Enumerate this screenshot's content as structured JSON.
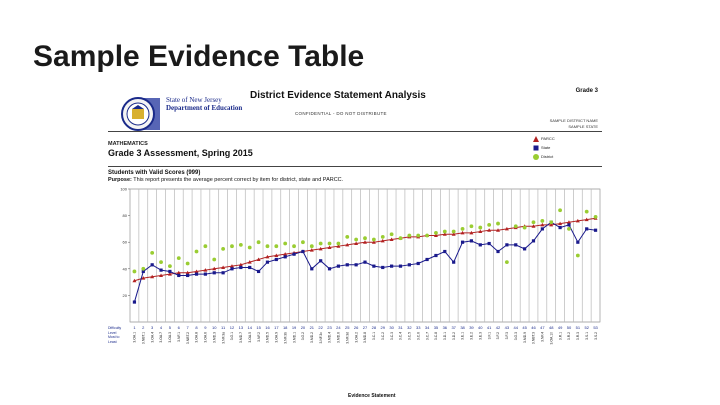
{
  "slide_title": "Sample Evidence Table",
  "report": {
    "dept_lines": [
      "State of New Jersey",
      "Department of Education"
    ],
    "title": "District Evidence Statement Analysis",
    "grade_tag": "Grade 3",
    "confidential": "CONFIDENTIAL - DO NOT DISTRIBUTE",
    "district_name": "SAMPLE DISTRICT NAME",
    "sample_state": "SAMPLE STATE",
    "subject": "MATHEMATICS",
    "assessment": "Grade 3 Assessment, Spring 2015",
    "students": "Students with Valid Scores (999)",
    "purpose_label": "Purpose:",
    "purpose_text": "This report presents the average percent correct by item for district, state and PARCC.",
    "difficulty_label": [
      "Difficulty",
      "Level",
      "Most to",
      "Least"
    ],
    "legend": [
      {
        "label": "PARCC",
        "color": "#b22222",
        "marker": "triangle"
      },
      {
        "label": "State",
        "color": "#1a1a8c",
        "marker": "square"
      },
      {
        "label": "District",
        "color": "#9acd32",
        "marker": "circle"
      }
    ]
  },
  "chart_data": {
    "type": "line",
    "xlabel": "Evidence Statement",
    "ylabel": "",
    "ylim": [
      0,
      100
    ],
    "yticks": [
      20,
      40,
      60,
      80,
      100
    ],
    "categories": [
      "1",
      "2",
      "3",
      "4",
      "5",
      "6",
      "7",
      "8",
      "9",
      "10",
      "11",
      "12",
      "13",
      "14",
      "15",
      "16",
      "17",
      "18",
      "19",
      "20",
      "21",
      "22",
      "23",
      "24",
      "25",
      "26",
      "27",
      "28",
      "29",
      "30",
      "31",
      "32",
      "33",
      "34",
      "35",
      "36",
      "37",
      "38",
      "39",
      "40",
      "41",
      "42",
      "43",
      "44",
      "45",
      "46",
      "47",
      "48",
      "49",
      "50",
      "51",
      "52",
      "53"
    ],
    "evidence_labels": [
      "3.OA.1",
      "3.NBT.1",
      "3.OA.4",
      "3.OA.7",
      "3.OA.3",
      "3.NF.1",
      "3.NBT.2",
      "3.OA.8",
      "3.OA.6",
      "3.MD.3",
      "3.NF.3a",
      "3.G.1",
      "3.MD.7",
      "3.OA.5",
      "3.NF.2",
      "3.MD.5",
      "3.OA.9",
      "3.NF.3b",
      "3.MD.1",
      "3.G.2",
      "3.MD.2",
      "3.NF.3c",
      "3.MD.4",
      "3.MD.6",
      "3.NF.3d",
      "3.OA.2",
      "3.MD.8",
      "3.C.1",
      "3.C.2",
      "3.C.3",
      "3.C.4",
      "3.C.5",
      "3.C.6",
      "3.C.7",
      "3.C.8",
      "3.D.1",
      "3.D.2",
      "3.E.1",
      "3.E.2",
      "3.E.3",
      "3.F.1",
      "3.F.2",
      "3.F.3",
      "3.G.3",
      "3.MD.9",
      "3.NBT.3",
      "3.NF.4",
      "3.OA.10",
      "3.R.1",
      "3.R.2",
      "3.R.3",
      "3.S.1",
      "3.S.2"
    ],
    "series": [
      {
        "name": "PARCC",
        "values": [
          31,
          33,
          34,
          35,
          36,
          37,
          37,
          38,
          39,
          40,
          41,
          42,
          43,
          45,
          47,
          49,
          50,
          51,
          52,
          53,
          54,
          55,
          56,
          57,
          58,
          59,
          60,
          60,
          61,
          62,
          63,
          64,
          64,
          65,
          65,
          66,
          66,
          67,
          67,
          68,
          69,
          69,
          70,
          71,
          72,
          72,
          73,
          73,
          74,
          75,
          76,
          77,
          78
        ]
      },
      {
        "name": "State",
        "values": [
          15,
          38,
          43,
          39,
          38,
          35,
          35,
          36,
          36,
          37,
          37,
          40,
          41,
          41,
          38,
          45,
          47,
          49,
          51,
          53,
          40,
          46,
          40,
          42,
          43,
          43,
          45,
          42,
          41,
          42,
          42,
          43,
          44,
          47,
          50,
          53,
          45,
          60,
          61,
          58,
          59,
          53,
          58,
          58,
          55,
          61,
          70,
          75,
          71,
          73,
          60,
          70,
          69
        ]
      },
      {
        "name": "District",
        "values": [
          38,
          40,
          52,
          45,
          42,
          48,
          44,
          53,
          57,
          47,
          55,
          57,
          58,
          56,
          60,
          57,
          57,
          59,
          57,
          60,
          57,
          59,
          59,
          59,
          64,
          62,
          63,
          62,
          64,
          66,
          63,
          65,
          65,
          65,
          67,
          68,
          68,
          70,
          72,
          71,
          73,
          74,
          45,
          72,
          71,
          75,
          76,
          75,
          84,
          70,
          50,
          83,
          79
        ]
      }
    ]
  }
}
